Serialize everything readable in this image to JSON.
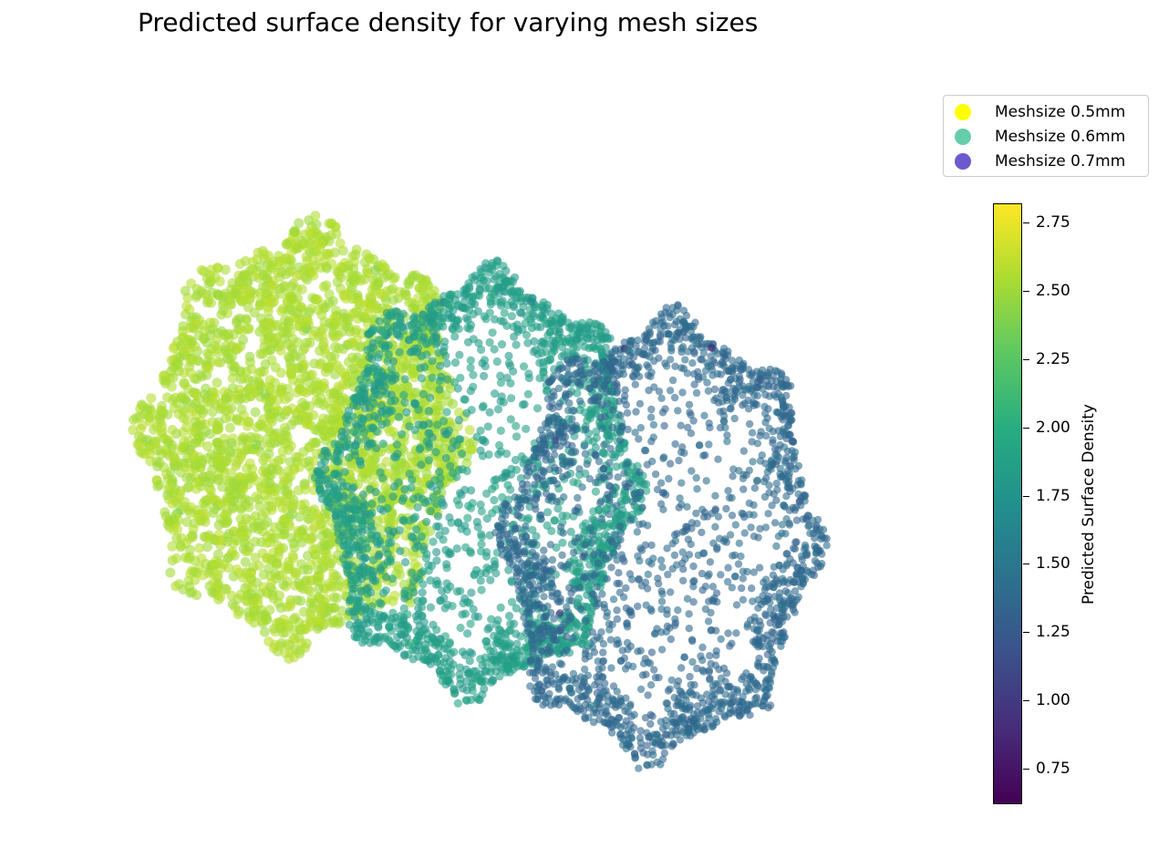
{
  "chart_data": {
    "type": "scatter",
    "title": "Predicted surface density for varying mesh sizes",
    "xlabel": "",
    "ylabel": "",
    "grid": false,
    "axes_visible": false,
    "legend_position": "top-right",
    "series": [
      {
        "name": "Meshsize 0.5mm",
        "legend_color": "#ffff00",
        "typical_value": 2.55,
        "value_range": [
          2.3,
          2.62
        ]
      },
      {
        "name": "Meshsize 0.6mm",
        "legend_color": "#66cdaa",
        "typical_value": 1.85,
        "value_range": [
          1.6,
          2.05
        ]
      },
      {
        "name": "Meshsize 0.7mm",
        "legend_color": "#6a5acd",
        "typical_value": 1.38,
        "value_range": [
          0.8,
          1.55
        ]
      }
    ],
    "colorbar": {
      "label": "Predicted Surface Density",
      "colormap": "viridis",
      "range": [
        0.62,
        2.82
      ],
      "ticks": [
        "0.75",
        "1.00",
        "1.25",
        "1.50",
        "1.75",
        "2.00",
        "2.25",
        "2.50",
        "2.75"
      ]
    }
  }
}
